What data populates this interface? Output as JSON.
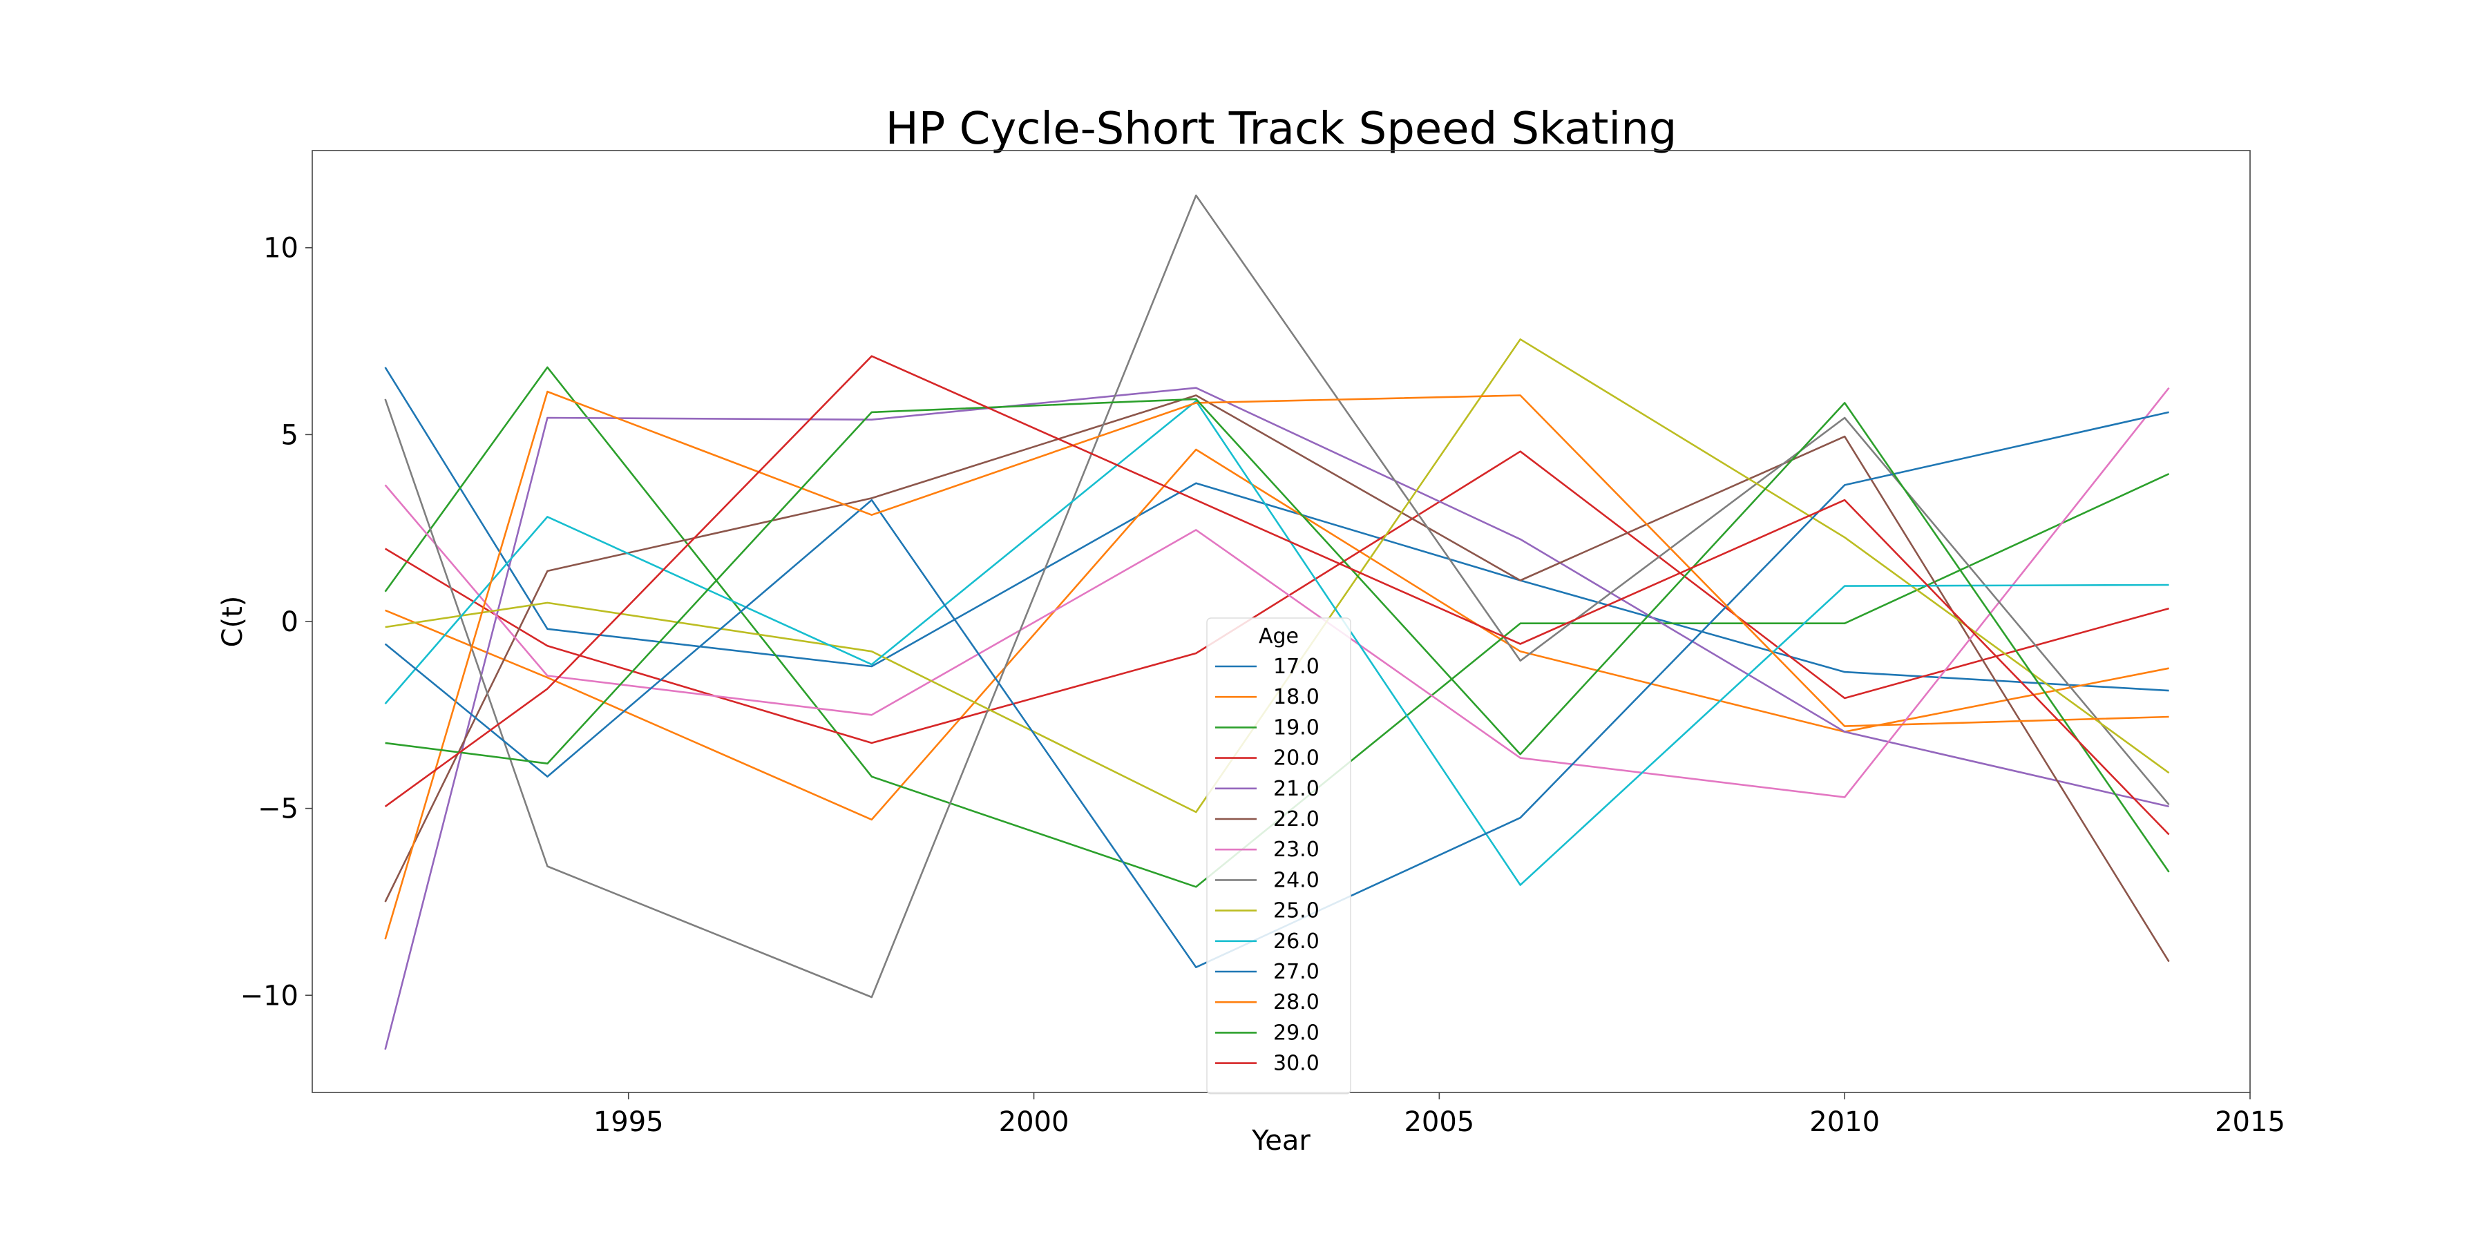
{
  "chart_data": {
    "type": "line",
    "title": "HP Cycle-Short Track Speed Skating",
    "xlabel": "Year",
    "ylabel": "C(t)",
    "x": [
      1992,
      1994,
      1998,
      2002,
      2006,
      2010,
      2014
    ],
    "xlim": [
      1991.1,
      2015.0
    ],
    "ylim": [
      -12.6,
      12.6
    ],
    "xticks": [
      1995,
      2000,
      2005,
      2010,
      2015
    ],
    "yticks": [
      -10,
      -5,
      0,
      5,
      10
    ],
    "grid": false,
    "legend": {
      "title": "Age",
      "placement": "lower-center"
    },
    "series": [
      {
        "name": "17.0",
        "color": "#1f77b4",
        "values": [
          6.8,
          -0.2,
          -1.2,
          3.7,
          1.1,
          -1.35,
          -1.85
        ]
      },
      {
        "name": "18.0",
        "color": "#ff7f0e",
        "values": [
          0.3,
          -1.5,
          -5.3,
          4.6,
          -0.8,
          -2.95,
          -1.25
        ]
      },
      {
        "name": "19.0",
        "color": "#2ca02c",
        "values": [
          0.8,
          6.8,
          -4.15,
          -7.1,
          -0.05,
          -0.05,
          3.95
        ]
      },
      {
        "name": "20.0",
        "color": "#d62728",
        "values": [
          1.95,
          -0.65,
          -3.25,
          -0.85,
          4.55,
          -2.05,
          0.35
        ]
      },
      {
        "name": "21.0",
        "color": "#9467bd",
        "values": [
          -11.45,
          5.45,
          5.4,
          6.25,
          2.2,
          -2.95,
          -4.95
        ]
      },
      {
        "name": "22.0",
        "color": "#8c564b",
        "values": [
          -7.5,
          1.35,
          3.3,
          6.05,
          1.1,
          4.95,
          -9.1
        ]
      },
      {
        "name": "23.0",
        "color": "#e377c2",
        "values": [
          3.65,
          -1.45,
          -2.5,
          2.45,
          -3.65,
          -4.7,
          6.25
        ]
      },
      {
        "name": "24.0",
        "color": "#7f7f7f",
        "values": [
          5.95,
          -6.55,
          -10.05,
          11.4,
          -1.05,
          5.45,
          -4.9
        ]
      },
      {
        "name": "25.0",
        "color": "#bcbd22",
        "values": [
          -0.15,
          0.5,
          -0.8,
          -5.1,
          7.55,
          2.25,
          -4.05
        ]
      },
      {
        "name": "26.0",
        "color": "#17becf",
        "values": [
          -2.2,
          2.8,
          -1.15,
          5.9,
          -7.05,
          0.95,
          0.98
        ]
      },
      {
        "name": "27.0",
        "color": "#1f77b4",
        "values": [
          -0.6,
          -4.15,
          3.25,
          -9.25,
          -5.25,
          3.65,
          5.6
        ]
      },
      {
        "name": "28.0",
        "color": "#ff7f0e",
        "values": [
          -8.5,
          6.15,
          2.85,
          5.85,
          6.05,
          -2.8,
          -2.55
        ]
      },
      {
        "name": "29.0",
        "color": "#2ca02c",
        "values": [
          -3.25,
          -3.8,
          5.6,
          5.95,
          -3.55,
          5.85,
          -6.7
        ]
      },
      {
        "name": "30.0",
        "color": "#d62728",
        "values": [
          -4.95,
          -1.8,
          7.1,
          3.25,
          -0.6,
          3.25,
          -5.7
        ]
      }
    ]
  }
}
